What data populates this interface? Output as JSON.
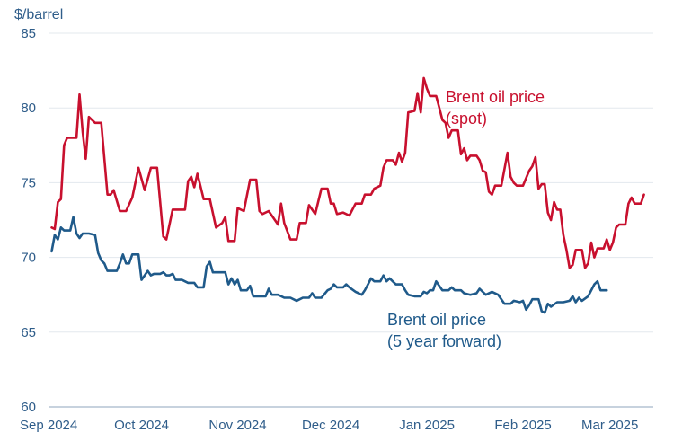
{
  "chart_data": {
    "type": "line",
    "title": "",
    "ylabel": "$/barrel",
    "ylim": [
      60,
      85
    ],
    "yticks": [
      "60",
      "65",
      "70",
      "75",
      "80",
      "85"
    ],
    "xtick_labels": [
      "Sep 2024",
      "Oct 2024",
      "Nov 2024",
      "Dec 2024",
      "Jan 2025",
      "Feb 2025",
      "Mar 2025"
    ],
    "grid": "horizontal",
    "series": [
      {
        "key": "spot",
        "label_lines": [
          "Brent oil price",
          "(spot)"
        ],
        "color": "#c8102e",
        "points": [
          [
            "2024-09-02",
            72.0
          ],
          [
            "2024-09-03",
            71.9
          ],
          [
            "2024-09-04",
            73.7
          ],
          [
            "2024-09-05",
            73.9
          ],
          [
            "2024-09-06",
            77.5
          ],
          [
            "2024-09-07",
            78.0
          ],
          [
            "2024-09-09",
            78.0
          ],
          [
            "2024-09-10",
            78.0
          ],
          [
            "2024-09-11",
            80.9
          ],
          [
            "2024-09-12",
            78.4
          ],
          [
            "2024-09-13",
            76.6
          ],
          [
            "2024-09-14",
            79.4
          ],
          [
            "2024-09-16",
            79.0
          ],
          [
            "2024-09-18",
            79.0
          ],
          [
            "2024-09-20",
            74.2
          ],
          [
            "2024-09-21",
            74.2
          ],
          [
            "2024-09-22",
            74.5
          ],
          [
            "2024-09-24",
            73.1
          ],
          [
            "2024-09-26",
            73.1
          ],
          [
            "2024-09-28",
            74.0
          ],
          [
            "2024-09-30",
            76.0
          ],
          [
            "2024-10-02",
            74.5
          ],
          [
            "2024-10-04",
            76.0
          ],
          [
            "2024-10-06",
            76.0
          ],
          [
            "2024-10-08",
            71.4
          ],
          [
            "2024-10-09",
            71.2
          ],
          [
            "2024-10-11",
            73.2
          ],
          [
            "2024-10-13",
            73.2
          ],
          [
            "2024-10-15",
            73.2
          ],
          [
            "2024-10-16",
            75.1
          ],
          [
            "2024-10-17",
            75.4
          ],
          [
            "2024-10-18",
            74.7
          ],
          [
            "2024-10-19",
            75.6
          ],
          [
            "2024-10-21",
            73.9
          ],
          [
            "2024-10-23",
            73.9
          ],
          [
            "2024-10-25",
            72.0
          ],
          [
            "2024-10-27",
            72.3
          ],
          [
            "2024-10-28",
            72.7
          ],
          [
            "2024-10-29",
            71.1
          ],
          [
            "2024-10-31",
            71.1
          ],
          [
            "2024-11-01",
            73.3
          ],
          [
            "2024-11-03",
            73.1
          ],
          [
            "2024-11-05",
            75.2
          ],
          [
            "2024-11-07",
            75.2
          ],
          [
            "2024-11-08",
            73.1
          ],
          [
            "2024-11-09",
            72.9
          ],
          [
            "2024-11-11",
            73.1
          ],
          [
            "2024-11-12",
            72.8
          ],
          [
            "2024-11-14",
            72.2
          ],
          [
            "2024-11-15",
            73.6
          ],
          [
            "2024-11-16",
            72.3
          ],
          [
            "2024-11-18",
            71.2
          ],
          [
            "2024-11-20",
            71.2
          ],
          [
            "2024-11-21",
            72.3
          ],
          [
            "2024-11-23",
            72.3
          ],
          [
            "2024-11-24",
            73.5
          ],
          [
            "2024-11-26",
            72.9
          ],
          [
            "2024-11-28",
            74.6
          ],
          [
            "2024-11-30",
            74.6
          ],
          [
            "2024-12-01",
            73.6
          ],
          [
            "2024-12-02",
            73.6
          ],
          [
            "2024-12-03",
            72.9
          ],
          [
            "2024-12-05",
            73.0
          ],
          [
            "2024-12-07",
            72.8
          ],
          [
            "2024-12-09",
            73.6
          ],
          [
            "2024-12-11",
            73.6
          ],
          [
            "2024-12-12",
            74.2
          ],
          [
            "2024-12-14",
            74.2
          ],
          [
            "2024-12-15",
            74.6
          ],
          [
            "2024-12-17",
            74.8
          ],
          [
            "2024-12-18",
            76.0
          ],
          [
            "2024-12-19",
            76.5
          ],
          [
            "2024-12-21",
            76.5
          ],
          [
            "2024-12-22",
            76.2
          ],
          [
            "2024-12-23",
            77.0
          ],
          [
            "2024-12-24",
            76.4
          ],
          [
            "2024-12-25",
            77.0
          ],
          [
            "2024-12-26",
            79.7
          ],
          [
            "2024-12-28",
            79.8
          ],
          [
            "2024-12-29",
            81.0
          ],
          [
            "2024-12-30",
            79.7
          ],
          [
            "2024-12-31",
            82.0
          ],
          [
            "2025-01-01",
            81.3
          ],
          [
            "2025-01-02",
            80.8
          ],
          [
            "2025-01-04",
            80.8
          ],
          [
            "2025-01-05",
            80.0
          ],
          [
            "2025-01-06",
            79.2
          ],
          [
            "2025-01-07",
            79.0
          ],
          [
            "2025-01-08",
            78.0
          ],
          [
            "2025-01-09",
            78.5
          ],
          [
            "2025-01-11",
            78.5
          ],
          [
            "2025-01-12",
            76.9
          ],
          [
            "2025-01-13",
            77.3
          ],
          [
            "2025-01-14",
            76.5
          ],
          [
            "2025-01-15",
            76.8
          ],
          [
            "2025-01-17",
            76.8
          ],
          [
            "2025-01-18",
            76.5
          ],
          [
            "2025-01-19",
            75.8
          ],
          [
            "2025-01-20",
            75.7
          ],
          [
            "2025-01-21",
            74.4
          ],
          [
            "2025-01-22",
            74.2
          ],
          [
            "2025-01-23",
            74.8
          ],
          [
            "2025-01-25",
            74.8
          ],
          [
            "2025-01-27",
            77.0
          ],
          [
            "2025-01-28",
            75.4
          ],
          [
            "2025-01-29",
            75.0
          ],
          [
            "2025-01-30",
            74.8
          ],
          [
            "2025-02-01",
            74.8
          ],
          [
            "2025-02-03",
            75.8
          ],
          [
            "2025-02-04",
            76.1
          ],
          [
            "2025-02-05",
            76.7
          ],
          [
            "2025-02-06",
            74.6
          ],
          [
            "2025-02-07",
            74.9
          ],
          [
            "2025-02-08",
            74.9
          ],
          [
            "2025-02-09",
            73.0
          ],
          [
            "2025-02-10",
            72.5
          ],
          [
            "2025-02-11",
            73.7
          ],
          [
            "2025-02-12",
            73.2
          ],
          [
            "2025-02-13",
            73.2
          ],
          [
            "2025-02-14",
            71.5
          ],
          [
            "2025-02-15",
            70.5
          ],
          [
            "2025-02-16",
            69.3
          ],
          [
            "2025-02-17",
            69.5
          ],
          [
            "2025-02-18",
            70.5
          ],
          [
            "2025-02-20",
            70.5
          ],
          [
            "2025-02-21",
            69.3
          ],
          [
            "2025-02-22",
            69.6
          ],
          [
            "2025-02-23",
            71.0
          ],
          [
            "2025-02-24",
            70.0
          ],
          [
            "2025-02-25",
            70.6
          ],
          [
            "2025-02-27",
            70.6
          ],
          [
            "2025-02-28",
            71.2
          ],
          [
            "2025-03-01",
            70.5
          ],
          [
            "2025-03-02",
            71.0
          ],
          [
            "2025-03-03",
            72.0
          ],
          [
            "2025-03-04",
            72.2
          ],
          [
            "2025-03-06",
            72.2
          ],
          [
            "2025-03-07",
            73.6
          ],
          [
            "2025-03-08",
            74.0
          ],
          [
            "2025-03-09",
            73.6
          ],
          [
            "2025-03-11",
            73.6
          ],
          [
            "2025-03-12",
            74.2
          ]
        ]
      },
      {
        "key": "forward",
        "label_lines": [
          "Brent oil price",
          "(5 year forward)"
        ],
        "color": "#1f5a8a",
        "points": [
          [
            "2024-09-02",
            70.4
          ],
          [
            "2024-09-03",
            71.5
          ],
          [
            "2024-09-04",
            71.2
          ],
          [
            "2024-09-05",
            72.0
          ],
          [
            "2024-09-06",
            71.8
          ],
          [
            "2024-09-08",
            71.8
          ],
          [
            "2024-09-09",
            72.7
          ],
          [
            "2024-09-10",
            71.6
          ],
          [
            "2024-09-11",
            71.3
          ],
          [
            "2024-09-12",
            71.6
          ],
          [
            "2024-09-14",
            71.6
          ],
          [
            "2024-09-16",
            71.5
          ],
          [
            "2024-09-17",
            70.3
          ],
          [
            "2024-09-18",
            69.8
          ],
          [
            "2024-09-19",
            69.6
          ],
          [
            "2024-09-20",
            69.1
          ],
          [
            "2024-09-21",
            69.1
          ],
          [
            "2024-09-23",
            69.1
          ],
          [
            "2024-09-24",
            69.6
          ],
          [
            "2024-09-25",
            70.2
          ],
          [
            "2024-09-26",
            69.6
          ],
          [
            "2024-09-27",
            69.6
          ],
          [
            "2024-09-28",
            70.2
          ],
          [
            "2024-09-30",
            70.2
          ],
          [
            "2024-10-01",
            68.5
          ],
          [
            "2024-10-02",
            68.8
          ],
          [
            "2024-10-03",
            69.1
          ],
          [
            "2024-10-04",
            68.8
          ],
          [
            "2024-10-05",
            68.9
          ],
          [
            "2024-10-07",
            68.9
          ],
          [
            "2024-10-08",
            69.0
          ],
          [
            "2024-10-09",
            68.8
          ],
          [
            "2024-10-10",
            68.8
          ],
          [
            "2024-10-11",
            68.9
          ],
          [
            "2024-10-12",
            68.5
          ],
          [
            "2024-10-14",
            68.5
          ],
          [
            "2024-10-16",
            68.3
          ],
          [
            "2024-10-18",
            68.3
          ],
          [
            "2024-10-19",
            68.0
          ],
          [
            "2024-10-21",
            68.0
          ],
          [
            "2024-10-22",
            69.4
          ],
          [
            "2024-10-23",
            69.7
          ],
          [
            "2024-10-24",
            69.0
          ],
          [
            "2024-10-26",
            69.0
          ],
          [
            "2024-10-28",
            69.0
          ],
          [
            "2024-10-29",
            68.2
          ],
          [
            "2024-10-30",
            68.6
          ],
          [
            "2024-10-31",
            68.2
          ],
          [
            "2024-11-01",
            68.5
          ],
          [
            "2024-11-02",
            67.8
          ],
          [
            "2024-11-04",
            67.8
          ],
          [
            "2024-11-05",
            68.1
          ],
          [
            "2024-11-06",
            67.4
          ],
          [
            "2024-11-08",
            67.4
          ],
          [
            "2024-11-10",
            67.4
          ],
          [
            "2024-11-11",
            67.9
          ],
          [
            "2024-11-12",
            67.5
          ],
          [
            "2024-11-14",
            67.5
          ],
          [
            "2024-11-16",
            67.3
          ],
          [
            "2024-11-18",
            67.3
          ],
          [
            "2024-11-20",
            67.1
          ],
          [
            "2024-11-22",
            67.3
          ],
          [
            "2024-11-24",
            67.3
          ],
          [
            "2024-11-25",
            67.6
          ],
          [
            "2024-11-26",
            67.3
          ],
          [
            "2024-11-28",
            67.3
          ],
          [
            "2024-11-30",
            67.8
          ],
          [
            "2024-12-01",
            67.9
          ],
          [
            "2024-12-02",
            68.2
          ],
          [
            "2024-12-03",
            68.0
          ],
          [
            "2024-12-05",
            68.0
          ],
          [
            "2024-12-06",
            68.2
          ],
          [
            "2024-12-07",
            68.0
          ],
          [
            "2024-12-09",
            67.7
          ],
          [
            "2024-12-11",
            67.5
          ],
          [
            "2024-12-12",
            67.8
          ],
          [
            "2024-12-13",
            68.2
          ],
          [
            "2024-12-14",
            68.6
          ],
          [
            "2024-12-15",
            68.4
          ],
          [
            "2024-12-17",
            68.4
          ],
          [
            "2024-12-18",
            68.8
          ],
          [
            "2024-12-19",
            68.4
          ],
          [
            "2024-12-20",
            68.6
          ],
          [
            "2024-12-22",
            68.2
          ],
          [
            "2024-12-24",
            68.2
          ],
          [
            "2024-12-25",
            67.8
          ],
          [
            "2024-12-26",
            67.5
          ],
          [
            "2024-12-28",
            67.4
          ],
          [
            "2024-12-30",
            67.4
          ],
          [
            "2024-12-31",
            67.7
          ],
          [
            "2025-01-01",
            67.6
          ],
          [
            "2025-01-02",
            67.8
          ],
          [
            "2025-01-03",
            67.8
          ],
          [
            "2025-01-04",
            68.4
          ],
          [
            "2025-01-06",
            67.8
          ],
          [
            "2025-01-08",
            67.8
          ],
          [
            "2025-01-09",
            68.0
          ],
          [
            "2025-01-10",
            67.8
          ],
          [
            "2025-01-12",
            67.8
          ],
          [
            "2025-01-13",
            67.6
          ],
          [
            "2025-01-15",
            67.5
          ],
          [
            "2025-01-17",
            67.6
          ],
          [
            "2025-01-18",
            67.9
          ],
          [
            "2025-01-20",
            67.5
          ],
          [
            "2025-01-22",
            67.7
          ],
          [
            "2025-01-24",
            67.5
          ],
          [
            "2025-01-25",
            67.2
          ],
          [
            "2025-01-26",
            66.9
          ],
          [
            "2025-01-28",
            66.9
          ],
          [
            "2025-01-29",
            67.1
          ],
          [
            "2025-01-31",
            67.0
          ],
          [
            "2025-02-01",
            67.1
          ],
          [
            "2025-02-02",
            66.5
          ],
          [
            "2025-02-03",
            66.8
          ],
          [
            "2025-02-04",
            67.2
          ],
          [
            "2025-02-06",
            67.2
          ],
          [
            "2025-02-07",
            66.4
          ],
          [
            "2025-02-08",
            66.3
          ],
          [
            "2025-02-09",
            66.9
          ],
          [
            "2025-02-10",
            66.7
          ],
          [
            "2025-02-12",
            67.0
          ],
          [
            "2025-02-14",
            67.0
          ],
          [
            "2025-02-16",
            67.1
          ],
          [
            "2025-02-17",
            67.4
          ],
          [
            "2025-02-18",
            67.0
          ],
          [
            "2025-02-19",
            67.3
          ],
          [
            "2025-02-20",
            67.1
          ],
          [
            "2025-02-22",
            67.4
          ],
          [
            "2025-02-23",
            67.8
          ],
          [
            "2025-02-24",
            68.2
          ],
          [
            "2025-02-25",
            68.4
          ],
          [
            "2025-02-26",
            67.8
          ],
          [
            "2025-02-28",
            67.8
          ]
        ]
      }
    ]
  }
}
